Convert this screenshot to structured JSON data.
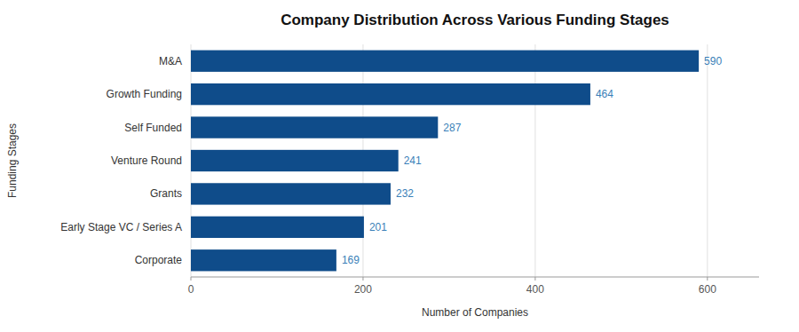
{
  "chart_data": {
    "type": "bar",
    "orientation": "horizontal",
    "title": "Company Distribution Across Various Funding Stages",
    "categories": [
      "M&A",
      "Growth Funding",
      "Self Funded",
      "Venture Round",
      "Grants",
      "Early Stage VC / Series A",
      "Corporate"
    ],
    "values": [
      590,
      464,
      287,
      241,
      232,
      201,
      169
    ],
    "color": "#0F4C8A",
    "xlabel": "Number of Companies",
    "ylabel": "Funding Stages",
    "xlim": [
      0,
      660
    ],
    "xticks": [
      0,
      200,
      400,
      600
    ],
    "grid": true,
    "data_labels": true
  }
}
